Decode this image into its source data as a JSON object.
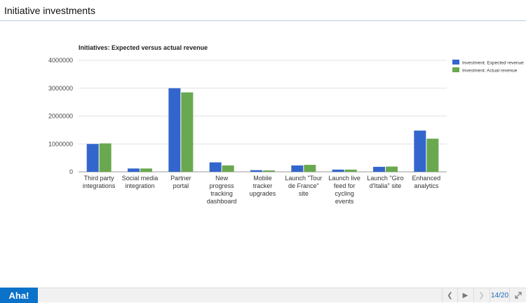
{
  "header": {
    "title": "Initiative investments"
  },
  "chart_data": {
    "type": "bar",
    "title": "Initiatives: Expected versus actual revenue",
    "categories": [
      [
        "Third party",
        "integrations"
      ],
      [
        "Social media",
        "integration"
      ],
      [
        "Partner",
        "portal"
      ],
      [
        "New",
        "progress",
        "tracking",
        "dashboard"
      ],
      [
        "Mobile",
        "tracker",
        "upgrades"
      ],
      [
        "Launch \"Tour",
        "de France\"",
        "site"
      ],
      [
        "Launch live",
        "feed for",
        "cycling",
        "events"
      ],
      [
        "Launch \"Giro",
        "d'Italia\" site"
      ],
      [
        "Enhanced",
        "analytics"
      ]
    ],
    "series": [
      {
        "name": "Investment: Expected revenue",
        "color": "#3366cc",
        "values": [
          1000000,
          120000,
          3000000,
          340000,
          60000,
          230000,
          80000,
          180000,
          1480000
        ]
      },
      {
        "name": "Investment: Actual revenue",
        "color": "#6aa84f",
        "values": [
          1020000,
          120000,
          2850000,
          230000,
          50000,
          250000,
          80000,
          190000,
          1190000
        ]
      }
    ],
    "ylim": [
      0,
      4000000
    ],
    "yticks": [
      "0",
      "1000000",
      "2000000",
      "3000000",
      "4000000"
    ],
    "grid": true,
    "legend": "top-right"
  },
  "footer": {
    "logo": "Aha!",
    "page": "14/20",
    "icons": {
      "prev": "chevron-left-icon",
      "play": "play-icon",
      "next": "chevron-right-icon",
      "expand": "expand-icon"
    }
  }
}
